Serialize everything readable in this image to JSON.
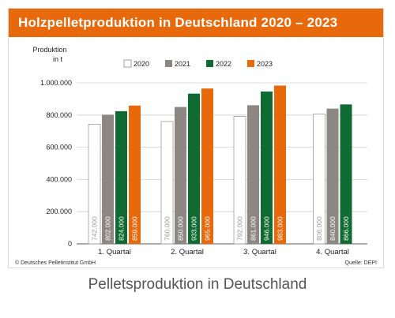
{
  "title": "Holzpelletproduktion in Deutschland 2020 – 2023",
  "caption": "Pelletsproduktion in Deutschland",
  "footer": {
    "left": "© Deutsches Pelletinstitut GmbH",
    "right": "Quelle: DEPI"
  },
  "colors": {
    "accent": "#e8680c",
    "s2020": "#ffffff",
    "s2021": "#8c8782",
    "s2022": "#0f6b32",
    "s2023": "#e8680c"
  },
  "chart_data": {
    "type": "bar",
    "ylabel": "Produktion in t",
    "ylim": [
      0,
      1000000
    ],
    "yticks": [
      0,
      200000,
      400000,
      600000,
      800000,
      1000000
    ],
    "ytick_labels": [
      "0",
      "200.000",
      "400.000",
      "600.000",
      "800.000",
      "1.000.000"
    ],
    "categories": [
      "1. Quartal",
      "2. Quartal",
      "3. Quartal",
      "4. Quartal"
    ],
    "legend_position": "top-right",
    "grid": true,
    "series": [
      {
        "name": "2020",
        "values": [
          742000,
          760000,
          792000,
          806000
        ],
        "labels": [
          "742.000",
          "760.000",
          "792.000",
          "806.000"
        ]
      },
      {
        "name": "2021",
        "values": [
          802000,
          850000,
          861000,
          840000
        ],
        "labels": [
          "802.000",
          "850.000",
          "861.000",
          "840.000"
        ]
      },
      {
        "name": "2022",
        "values": [
          824000,
          933000,
          946000,
          866000
        ],
        "labels": [
          "824.000",
          "933.000",
          "946.000",
          "866.000"
        ]
      },
      {
        "name": "2023",
        "values": [
          859000,
          965000,
          983000,
          null
        ],
        "labels": [
          "859.000",
          "965.000",
          "983.000",
          null
        ]
      }
    ]
  }
}
